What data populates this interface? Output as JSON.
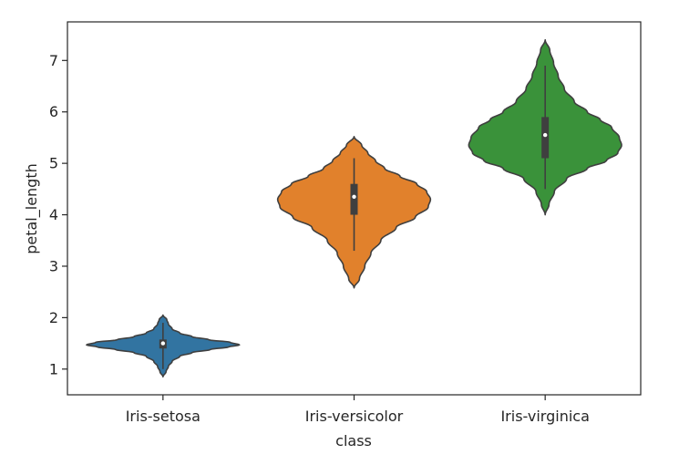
{
  "chart_data": {
    "type": "violin",
    "xlabel": "class",
    "ylabel": "petal_length",
    "categories": [
      "Iris-setosa",
      "Iris-versicolor",
      "Iris-virginica"
    ],
    "ylim": [
      0.5,
      7.75
    ],
    "yticks": [
      1,
      2,
      3,
      4,
      5,
      6,
      7
    ],
    "grid": false,
    "violins": [
      {
        "category": "Iris-setosa",
        "color": "#3274a1",
        "min": 0.85,
        "max": 2.05,
        "q1": 1.4,
        "median": 1.5,
        "q3": 1.575,
        "whisker_low": 1.0,
        "whisker_high": 1.9,
        "profile": [
          [
            0.85,
            0.0
          ],
          [
            0.95,
            0.04
          ],
          [
            1.05,
            0.07
          ],
          [
            1.15,
            0.12
          ],
          [
            1.25,
            0.22
          ],
          [
            1.32,
            0.38
          ],
          [
            1.38,
            0.62
          ],
          [
            1.43,
            0.86
          ],
          [
            1.47,
            1.0
          ],
          [
            1.52,
            0.88
          ],
          [
            1.57,
            0.6
          ],
          [
            1.63,
            0.38
          ],
          [
            1.7,
            0.22
          ],
          [
            1.78,
            0.12
          ],
          [
            1.88,
            0.07
          ],
          [
            1.96,
            0.05
          ],
          [
            2.05,
            0.0
          ]
        ]
      },
      {
        "category": "Iris-versicolor",
        "color": "#e1812c",
        "min": 2.58,
        "max": 5.52,
        "q1": 4.0,
        "median": 4.35,
        "q3": 4.6,
        "whisker_low": 3.3,
        "whisker_high": 5.1,
        "profile": [
          [
            2.58,
            0.0
          ],
          [
            2.75,
            0.07
          ],
          [
            3.0,
            0.14
          ],
          [
            3.25,
            0.22
          ],
          [
            3.5,
            0.35
          ],
          [
            3.75,
            0.55
          ],
          [
            3.95,
            0.8
          ],
          [
            4.15,
            0.97
          ],
          [
            4.3,
            1.0
          ],
          [
            4.45,
            0.95
          ],
          [
            4.6,
            0.82
          ],
          [
            4.75,
            0.6
          ],
          [
            4.9,
            0.4
          ],
          [
            5.05,
            0.28
          ],
          [
            5.2,
            0.18
          ],
          [
            5.35,
            0.1
          ],
          [
            5.52,
            0.0
          ]
        ]
      },
      {
        "category": "Iris-virginica",
        "color": "#3a923a",
        "min": 4.0,
        "max": 7.4,
        "q1": 5.1,
        "median": 5.55,
        "q3": 5.9,
        "whisker_low": 4.5,
        "whisker_high": 6.9,
        "profile": [
          [
            4.0,
            0.0
          ],
          [
            4.2,
            0.05
          ],
          [
            4.45,
            0.12
          ],
          [
            4.7,
            0.28
          ],
          [
            4.9,
            0.55
          ],
          [
            5.05,
            0.8
          ],
          [
            5.2,
            0.95
          ],
          [
            5.35,
            1.0
          ],
          [
            5.5,
            0.97
          ],
          [
            5.7,
            0.87
          ],
          [
            5.85,
            0.72
          ],
          [
            6.0,
            0.55
          ],
          [
            6.2,
            0.38
          ],
          [
            6.45,
            0.25
          ],
          [
            6.7,
            0.17
          ],
          [
            6.95,
            0.11
          ],
          [
            7.2,
            0.06
          ],
          [
            7.4,
            0.0
          ]
        ]
      }
    ]
  }
}
